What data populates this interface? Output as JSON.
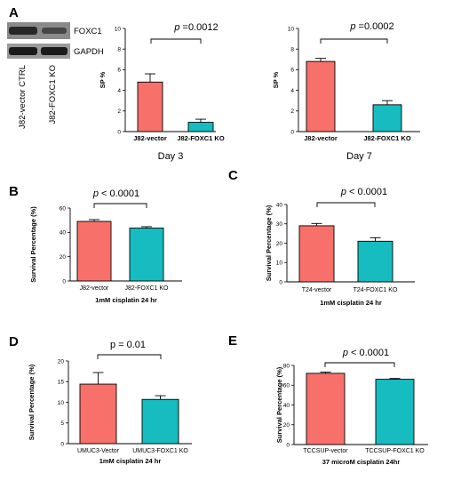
{
  "blot": {
    "letter": "A",
    "rows": [
      "FOXC1",
      "GAPDH"
    ],
    "lanes": [
      "J82-vector CTRL",
      "J82-FOXC1 KO"
    ]
  },
  "chart_data": [
    {
      "id": "A1",
      "letter": "",
      "type": "bar",
      "categories": [
        "J82-vector",
        "J82-FOXC1 KO"
      ],
      "values": [
        4.8,
        0.9
      ],
      "errors": [
        0.8,
        0.3
      ],
      "colors": [
        "#f7716a",
        "#16bcbf"
      ],
      "ylabel": "SP %",
      "xlabel": "",
      "xtitle_below": "Day 3",
      "ylim": [
        0,
        10
      ],
      "yticks": [
        0,
        2,
        4,
        6,
        8,
        10
      ],
      "pvalue": "=0.0012",
      "p_italic": true,
      "title": ""
    },
    {
      "id": "A2",
      "letter": "",
      "type": "bar",
      "categories": [
        "J82-vector",
        "J82-FOXC1 KO"
      ],
      "values": [
        6.8,
        2.6
      ],
      "errors": [
        0.3,
        0.4
      ],
      "colors": [
        "#f7716a",
        "#16bcbf"
      ],
      "ylabel": "SP %",
      "xlabel": "",
      "xtitle_below": "Day 7",
      "ylim": [
        0,
        10
      ],
      "yticks": [
        0,
        2,
        4,
        6,
        8,
        10
      ],
      "pvalue": "=0.0002",
      "p_italic": true,
      "title": ""
    },
    {
      "id": "B",
      "letter": "B",
      "type": "bar",
      "categories": [
        "J82-vector",
        "J82-FOXC1 KO"
      ],
      "values": [
        49,
        43.5
      ],
      "errors": [
        1.5,
        1.2
      ],
      "colors": [
        "#f7716a",
        "#16bcbf"
      ],
      "ylabel": "Survival Percentage (%)",
      "xlabel": "1mM cisplatin 24 hr",
      "ylim": [
        0,
        60
      ],
      "yticks": [
        0,
        20,
        40,
        60
      ],
      "pvalue": "< 0.0001",
      "p_italic": true,
      "title": ""
    },
    {
      "id": "C",
      "letter": "C",
      "type": "bar",
      "categories": [
        "T24-vector",
        "T24-FOXC1 KO"
      ],
      "values": [
        29,
        21
      ],
      "errors": [
        1.2,
        1.8
      ],
      "colors": [
        "#f7716a",
        "#16bcbf"
      ],
      "ylabel": "Survival Percentage (%)",
      "xlabel": "1mM cisplatin 24 hr",
      "ylim": [
        0,
        40
      ],
      "yticks": [
        0,
        10,
        20,
        30,
        40
      ],
      "pvalue": "< 0.0001",
      "p_italic": true,
      "title": ""
    },
    {
      "id": "D",
      "letter": "D",
      "type": "bar",
      "categories": [
        "UMUC3-Vector",
        "UMUC3-FOXC1 KO"
      ],
      "values": [
        14.4,
        10.7
      ],
      "errors": [
        2.8,
        0.9
      ],
      "colors": [
        "#f7716a",
        "#16bcbf"
      ],
      "ylabel": "Survival Percentage (%)",
      "xlabel": "1mM cisplatin 24 hr",
      "ylim": [
        0,
        20
      ],
      "yticks": [
        0,
        5,
        10,
        15,
        20
      ],
      "pvalue": "= 0.01",
      "p_italic": false,
      "title": ""
    },
    {
      "id": "E",
      "letter": "E",
      "type": "bar",
      "categories": [
        "TCCSUP-vector",
        "TCCSUP-FOXC1 KO"
      ],
      "values": [
        72,
        66
      ],
      "errors": [
        1.2,
        0.8
      ],
      "colors": [
        "#f7716a",
        "#16bcbf"
      ],
      "ylabel": "Survival Percentage (%)",
      "xlabel": "37 microM cisplatin 24hr",
      "ylim": [
        0,
        80
      ],
      "yticks": [
        0,
        20,
        40,
        60,
        80
      ],
      "pvalue": "< 0.0001",
      "p_italic": true,
      "title": ""
    }
  ]
}
